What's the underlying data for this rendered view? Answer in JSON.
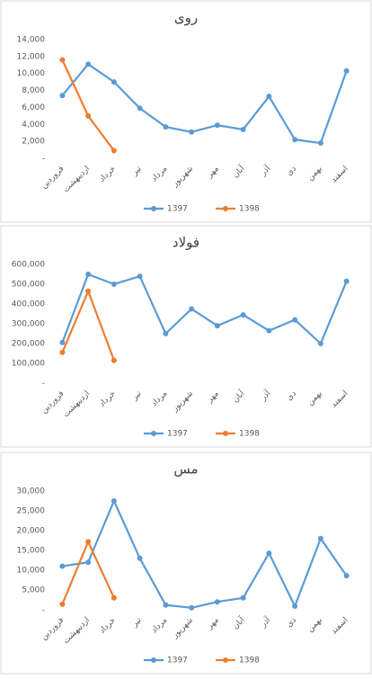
{
  "chart_data": [
    {
      "type": "line",
      "title": "روی",
      "categories": [
        "فروردین",
        "اردیبهشت",
        "خرداد",
        "تیر",
        "مرداد",
        "شهریور",
        "مهر",
        "آبان",
        "آذر",
        "دی",
        "بهمن",
        "اسفند"
      ],
      "series": [
        {
          "name": "1397",
          "color": "#5b9bd5",
          "values": [
            7400,
            11100,
            9000,
            5900,
            3700,
            3100,
            3900,
            3400,
            7300,
            2200,
            1800,
            10300
          ]
        },
        {
          "name": "1398",
          "color": "#ed7d31",
          "values": [
            11600,
            5000,
            900,
            null,
            null,
            null,
            null,
            null,
            null,
            null,
            null,
            null
          ]
        }
      ],
      "ylim": [
        0,
        14000
      ],
      "yticks": [
        {
          "value": 0,
          "label": "-"
        },
        {
          "value": 2000,
          "label": "2,000"
        },
        {
          "value": 4000,
          "label": "4,000"
        },
        {
          "value": 6000,
          "label": "6,000"
        },
        {
          "value": 8000,
          "label": "8,000"
        },
        {
          "value": 10000,
          "label": "10,000"
        },
        {
          "value": 12000,
          "label": "12,000"
        },
        {
          "value": 14000,
          "label": "14,000"
        }
      ],
      "grid": false,
      "legend": "bottom"
    },
    {
      "type": "line",
      "title": "فولاد",
      "categories": [
        "فروردین",
        "اردیبهشت",
        "خرداد",
        "تیر",
        "مرداد",
        "شهریور",
        "مهر",
        "آبان",
        "آذر",
        "دی",
        "بهمن",
        "اسفند"
      ],
      "series": [
        {
          "name": "1397",
          "color": "#5b9bd5",
          "values": [
            205000,
            550000,
            500000,
            540000,
            250000,
            375000,
            290000,
            345000,
            265000,
            320000,
            200000,
            515000
          ]
        },
        {
          "name": "1398",
          "color": "#ed7d31",
          "values": [
            155000,
            465000,
            115000,
            null,
            null,
            null,
            null,
            null,
            null,
            null,
            null,
            null
          ]
        }
      ],
      "ylim": [
        0,
        600000
      ],
      "yticks": [
        {
          "value": 0,
          "label": "-"
        },
        {
          "value": 100000,
          "label": "100,000"
        },
        {
          "value": 200000,
          "label": "200,000"
        },
        {
          "value": 300000,
          "label": "300,000"
        },
        {
          "value": 400000,
          "label": "400,000"
        },
        {
          "value": 500000,
          "label": "500,000"
        },
        {
          "value": 600000,
          "label": "600,000"
        }
      ],
      "grid": false,
      "legend": "bottom"
    },
    {
      "type": "line",
      "title": "مس",
      "categories": [
        "فروردین",
        "اردیبهشت",
        "خرداد",
        "تیر",
        "مرداد",
        "شهریور",
        "مهر",
        "آبان",
        "آذر",
        "دی",
        "بهمن",
        "اسفند"
      ],
      "series": [
        {
          "name": "1397",
          "color": "#5b9bd5",
          "values": [
            11000,
            12000,
            27500,
            13000,
            1200,
            500,
            2000,
            3000,
            14300,
            900,
            18000,
            8600
          ]
        },
        {
          "name": "1398",
          "color": "#ed7d31",
          "values": [
            1400,
            17200,
            3000,
            null,
            null,
            null,
            null,
            null,
            null,
            null,
            null,
            null
          ]
        }
      ],
      "ylim": [
        0,
        30000
      ],
      "yticks": [
        {
          "value": 0,
          "label": "-"
        },
        {
          "value": 5000,
          "label": "5,000"
        },
        {
          "value": 10000,
          "label": "10,000"
        },
        {
          "value": 15000,
          "label": "15,000"
        },
        {
          "value": 20000,
          "label": "20,000"
        },
        {
          "value": 25000,
          "label": "25,000"
        },
        {
          "value": 30000,
          "label": "30,000"
        }
      ],
      "grid": false,
      "legend": "bottom"
    }
  ]
}
